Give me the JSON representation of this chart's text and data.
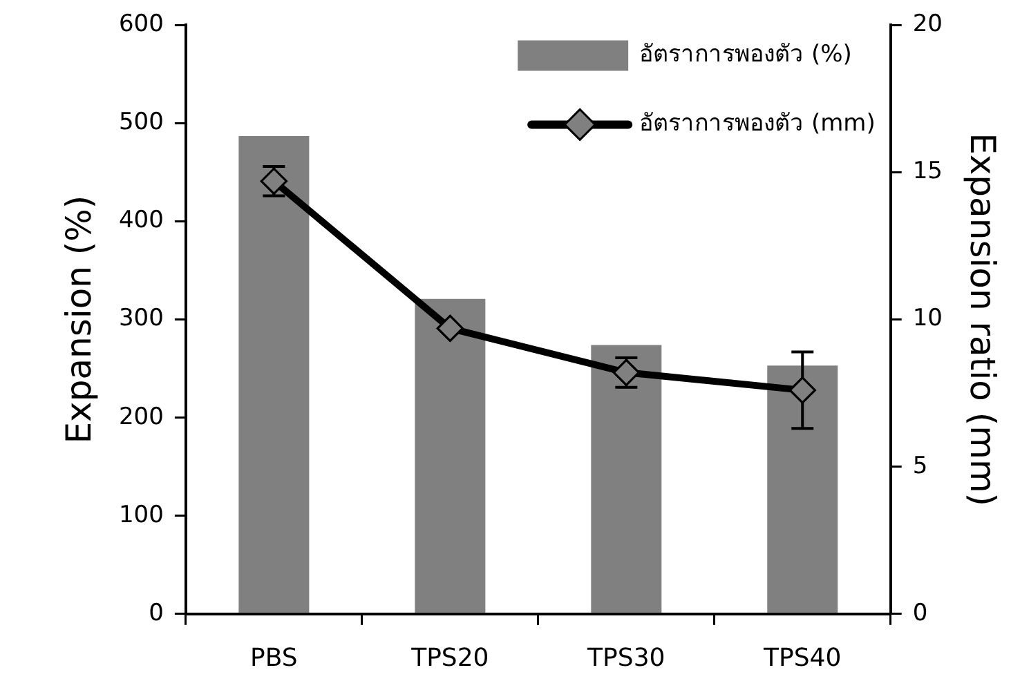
{
  "chart_data": {
    "type": "bar",
    "ylabel": "Expansion (%)",
    "y2label": "Expansion ratio (mm)",
    "categories": [
      "PBS",
      "TPS20",
      "TPS30",
      "TPS40"
    ],
    "series": [
      {
        "name": "อัตราการพองตัว (%)",
        "color": "#808080",
        "values": [
          487,
          321,
          274,
          253
        ]
      },
      {
        "name": "อัตราการพองตัว (mm)",
        "type": "line",
        "axis": "y2",
        "color": "#000000",
        "values": [
          14.7,
          9.7,
          8.2,
          7.6
        ],
        "errors": [
          0.5,
          null,
          0.5,
          1.3
        ],
        "marker": "diamond"
      }
    ],
    "ylim": [
      0,
      600
    ],
    "yticks": [
      0,
      100,
      200,
      300,
      400,
      500,
      600
    ],
    "y2lim": [
      0,
      20
    ],
    "y2ticks": [
      0,
      5,
      10,
      15,
      20
    ],
    "grid": false,
    "legend": "top right"
  }
}
